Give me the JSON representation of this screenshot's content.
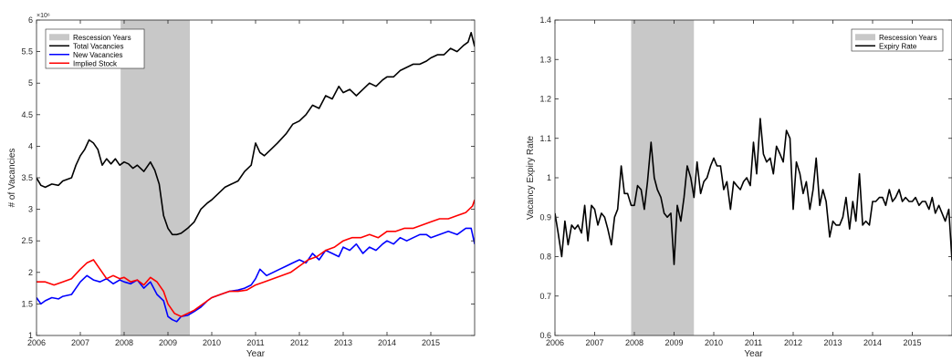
{
  "chart_data": [
    {
      "type": "line",
      "xlabel": "Year",
      "ylabel": "# of Vacancies",
      "y_exponent_label": "×10⁶",
      "xlim": [
        2006,
        2016
      ],
      "ylim": [
        1,
        6
      ],
      "xticks": [
        "2006",
        "2007",
        "2008",
        "2009",
        "2010",
        "2011",
        "2012",
        "2013",
        "2014",
        "2015"
      ],
      "yticks": [
        "1",
        "1.5",
        "2",
        "2.5",
        "3",
        "3.5",
        "4",
        "4.5",
        "5",
        "5.5",
        "6"
      ],
      "grid": false,
      "legend_position": "top-left",
      "recession_label": "Rescession Years",
      "recession": [
        2007.92,
        2009.5
      ],
      "recession_color": "#c8c8c8",
      "series": [
        {
          "name": "Total Vacancies",
          "color": "#000000",
          "x": [
            2006,
            2006.1,
            2006.2,
            2006.35,
            2006.5,
            2006.6,
            2006.8,
            2006.9,
            2007,
            2007.1,
            2007.2,
            2007.3,
            2007.4,
            2007.5,
            2007.6,
            2007.7,
            2007.8,
            2007.9,
            2008,
            2008.1,
            2008.2,
            2008.3,
            2008.45,
            2008.6,
            2008.7,
            2008.8,
            2008.9,
            2009,
            2009.1,
            2009.2,
            2009.3,
            2009.45,
            2009.6,
            2009.75,
            2009.9,
            2010,
            2010.15,
            2010.3,
            2010.45,
            2010.6,
            2010.75,
            2010.9,
            2011,
            2011.1,
            2011.2,
            2011.35,
            2011.5,
            2011.7,
            2011.85,
            2012,
            2012.15,
            2012.3,
            2012.45,
            2012.6,
            2012.75,
            2012.9,
            2013,
            2013.15,
            2013.3,
            2013.45,
            2013.6,
            2013.75,
            2013.9,
            2014,
            2014.15,
            2014.3,
            2014.45,
            2014.6,
            2014.75,
            2014.9,
            2015,
            2015.15,
            2015.3,
            2015.45,
            2015.6,
            2015.75,
            2015.85,
            2015.92,
            2016
          ],
          "y": [
            3.5,
            3.38,
            3.35,
            3.4,
            3.38,
            3.45,
            3.5,
            3.7,
            3.85,
            3.95,
            4.1,
            4.05,
            3.95,
            3.7,
            3.8,
            3.72,
            3.8,
            3.7,
            3.75,
            3.72,
            3.65,
            3.7,
            3.6,
            3.75,
            3.62,
            3.4,
            2.9,
            2.7,
            2.6,
            2.6,
            2.62,
            2.7,
            2.8,
            3.0,
            3.1,
            3.15,
            3.25,
            3.35,
            3.4,
            3.45,
            3.6,
            3.7,
            4.05,
            3.9,
            3.85,
            3.95,
            4.05,
            4.2,
            4.35,
            4.4,
            4.5,
            4.65,
            4.6,
            4.8,
            4.75,
            4.95,
            4.85,
            4.9,
            4.8,
            4.9,
            5.0,
            4.95,
            5.05,
            5.1,
            5.1,
            5.2,
            5.25,
            5.3,
            5.3,
            5.35,
            5.4,
            5.45,
            5.45,
            5.55,
            5.5,
            5.6,
            5.65,
            5.8,
            5.58
          ]
        },
        {
          "name": "New Vacancies",
          "color": "#0000ff",
          "x": [
            2006,
            2006.1,
            2006.2,
            2006.35,
            2006.5,
            2006.6,
            2006.8,
            2006.9,
            2007,
            2007.15,
            2007.3,
            2007.45,
            2007.6,
            2007.75,
            2007.9,
            2008,
            2008.15,
            2008.3,
            2008.45,
            2008.6,
            2008.75,
            2008.9,
            2009,
            2009.1,
            2009.2,
            2009.3,
            2009.45,
            2009.6,
            2009.75,
            2009.9,
            2010,
            2010.2,
            2010.4,
            2010.6,
            2010.75,
            2010.9,
            2011,
            2011.1,
            2011.25,
            2011.4,
            2011.55,
            2011.7,
            2011.85,
            2012,
            2012.15,
            2012.3,
            2012.45,
            2012.6,
            2012.75,
            2012.9,
            2013,
            2013.15,
            2013.3,
            2013.45,
            2013.6,
            2013.75,
            2013.9,
            2014,
            2014.15,
            2014.3,
            2014.45,
            2014.6,
            2014.75,
            2014.9,
            2015,
            2015.2,
            2015.4,
            2015.6,
            2015.8,
            2015.92,
            2016
          ],
          "y": [
            1.6,
            1.5,
            1.55,
            1.6,
            1.58,
            1.62,
            1.65,
            1.75,
            1.85,
            1.95,
            1.88,
            1.85,
            1.9,
            1.82,
            1.88,
            1.85,
            1.82,
            1.88,
            1.75,
            1.85,
            1.65,
            1.55,
            1.3,
            1.25,
            1.22,
            1.3,
            1.32,
            1.38,
            1.45,
            1.55,
            1.6,
            1.65,
            1.7,
            1.72,
            1.75,
            1.8,
            1.9,
            2.05,
            1.95,
            2.0,
            2.05,
            2.1,
            2.15,
            2.2,
            2.15,
            2.3,
            2.2,
            2.35,
            2.3,
            2.25,
            2.4,
            2.35,
            2.45,
            2.3,
            2.4,
            2.35,
            2.45,
            2.5,
            2.45,
            2.55,
            2.5,
            2.55,
            2.6,
            2.6,
            2.55,
            2.6,
            2.65,
            2.6,
            2.7,
            2.7,
            2.45
          ]
        },
        {
          "name": "Implied Stock",
          "color": "#ff0000",
          "x": [
            2006,
            2006.2,
            2006.4,
            2006.6,
            2006.8,
            2007,
            2007.15,
            2007.3,
            2007.45,
            2007.6,
            2007.75,
            2007.9,
            2008,
            2008.15,
            2008.3,
            2008.45,
            2008.6,
            2008.75,
            2008.9,
            2009,
            2009.15,
            2009.3,
            2009.45,
            2009.6,
            2009.8,
            2010,
            2010.2,
            2010.4,
            2010.6,
            2010.8,
            2011,
            2011.2,
            2011.4,
            2011.6,
            2011.8,
            2012,
            2012.2,
            2012.4,
            2012.6,
            2012.8,
            2013,
            2013.2,
            2013.4,
            2013.6,
            2013.8,
            2014,
            2014.2,
            2014.4,
            2014.6,
            2014.8,
            2015,
            2015.2,
            2015.4,
            2015.6,
            2015.8,
            2015.95,
            2016
          ],
          "y": [
            1.85,
            1.85,
            1.8,
            1.85,
            1.9,
            2.05,
            2.15,
            2.2,
            2.05,
            1.9,
            1.95,
            1.9,
            1.92,
            1.85,
            1.88,
            1.8,
            1.92,
            1.85,
            1.7,
            1.5,
            1.35,
            1.3,
            1.35,
            1.4,
            1.5,
            1.6,
            1.65,
            1.7,
            1.7,
            1.72,
            1.8,
            1.85,
            1.9,
            1.95,
            2.0,
            2.1,
            2.2,
            2.25,
            2.35,
            2.4,
            2.5,
            2.55,
            2.55,
            2.6,
            2.55,
            2.65,
            2.65,
            2.7,
            2.7,
            2.75,
            2.8,
            2.85,
            2.85,
            2.9,
            2.95,
            3.05,
            3.15
          ]
        }
      ]
    },
    {
      "type": "line",
      "xlabel": "Year",
      "ylabel": "Vacancy Expiry Rate",
      "xlim": [
        2006,
        2016
      ],
      "ylim": [
        0.6,
        1.4
      ],
      "xticks": [
        "2006",
        "2007",
        "2008",
        "2009",
        "2010",
        "2011",
        "2012",
        "2013",
        "2014",
        "2015"
      ],
      "yticks": [
        "0.6",
        "0.7",
        "0.8",
        "0.9",
        "1",
        "1.1",
        "1.2",
        "1.3",
        "1.4"
      ],
      "grid": false,
      "legend_position": "top-right",
      "recession_label": "Rescession Years",
      "recession": [
        2007.92,
        2009.5
      ],
      "recession_color": "#c8c8c8",
      "series": [
        {
          "name": "Expiry Rate",
          "color": "#000000",
          "x": [
            2006,
            2006.08,
            2006.17,
            2006.25,
            2006.33,
            2006.42,
            2006.5,
            2006.58,
            2006.67,
            2006.75,
            2006.83,
            2006.92,
            2007,
            2007.08,
            2007.17,
            2007.25,
            2007.33,
            2007.42,
            2007.5,
            2007.58,
            2007.67,
            2007.75,
            2007.83,
            2007.92,
            2008,
            2008.08,
            2008.17,
            2008.25,
            2008.33,
            2008.42,
            2008.5,
            2008.58,
            2008.67,
            2008.75,
            2008.83,
            2008.92,
            2009,
            2009.08,
            2009.17,
            2009.25,
            2009.33,
            2009.42,
            2009.5,
            2009.58,
            2009.67,
            2009.75,
            2009.83,
            2009.92,
            2010,
            2010.08,
            2010.17,
            2010.25,
            2010.33,
            2010.42,
            2010.5,
            2010.58,
            2010.67,
            2010.75,
            2010.83,
            2010.92,
            2011,
            2011.08,
            2011.17,
            2011.25,
            2011.33,
            2011.42,
            2011.5,
            2011.58,
            2011.67,
            2011.75,
            2011.83,
            2011.92,
            2012,
            2012.08,
            2012.17,
            2012.25,
            2012.33,
            2012.42,
            2012.5,
            2012.58,
            2012.67,
            2012.75,
            2012.83,
            2012.92,
            2013,
            2013.08,
            2013.17,
            2013.25,
            2013.33,
            2013.42,
            2013.5,
            2013.58,
            2013.67,
            2013.75,
            2013.83,
            2013.92,
            2014,
            2014.08,
            2014.17,
            2014.25,
            2014.33,
            2014.42,
            2014.5,
            2014.58,
            2014.67,
            2014.75,
            2014.83,
            2014.92,
            2015,
            2015.08,
            2015.17,
            2015.25,
            2015.33,
            2015.42,
            2015.5,
            2015.58,
            2015.67,
            2015.75,
            2015.83,
            2015.92,
            2016
          ],
          "y": [
            0.91,
            0.86,
            0.8,
            0.89,
            0.83,
            0.88,
            0.87,
            0.88,
            0.86,
            0.93,
            0.84,
            0.93,
            0.92,
            0.88,
            0.91,
            0.9,
            0.87,
            0.83,
            0.9,
            0.92,
            1.03,
            0.96,
            0.96,
            0.93,
            0.93,
            0.98,
            0.97,
            0.92,
            0.99,
            1.09,
            1.0,
            0.97,
            0.95,
            0.91,
            0.9,
            0.91,
            0.78,
            0.93,
            0.89,
            0.95,
            1.03,
            1.0,
            0.95,
            1.04,
            0.96,
            0.99,
            1.0,
            1.03,
            1.05,
            1.03,
            1.03,
            0.97,
            0.99,
            0.92,
            0.99,
            0.98,
            0.97,
            0.99,
            1.0,
            0.98,
            1.09,
            1.01,
            1.15,
            1.06,
            1.04,
            1.05,
            1.01,
            1.08,
            1.06,
            1.04,
            1.12,
            1.1,
            0.92,
            1.04,
            1.01,
            0.96,
            0.99,
            0.92,
            0.97,
            1.05,
            0.93,
            0.97,
            0.94,
            0.85,
            0.89,
            0.88,
            0.88,
            0.9,
            0.95,
            0.87,
            0.94,
            0.89,
            1.01,
            0.88,
            0.89,
            0.88,
            0.94,
            0.94,
            0.95,
            0.95,
            0.93,
            0.97,
            0.94,
            0.95,
            0.97,
            0.94,
            0.95,
            0.94,
            0.94,
            0.95,
            0.93,
            0.94,
            0.94,
            0.92,
            0.95,
            0.91,
            0.93,
            0.91,
            0.89,
            0.92,
            0.79
          ]
        }
      ]
    }
  ]
}
